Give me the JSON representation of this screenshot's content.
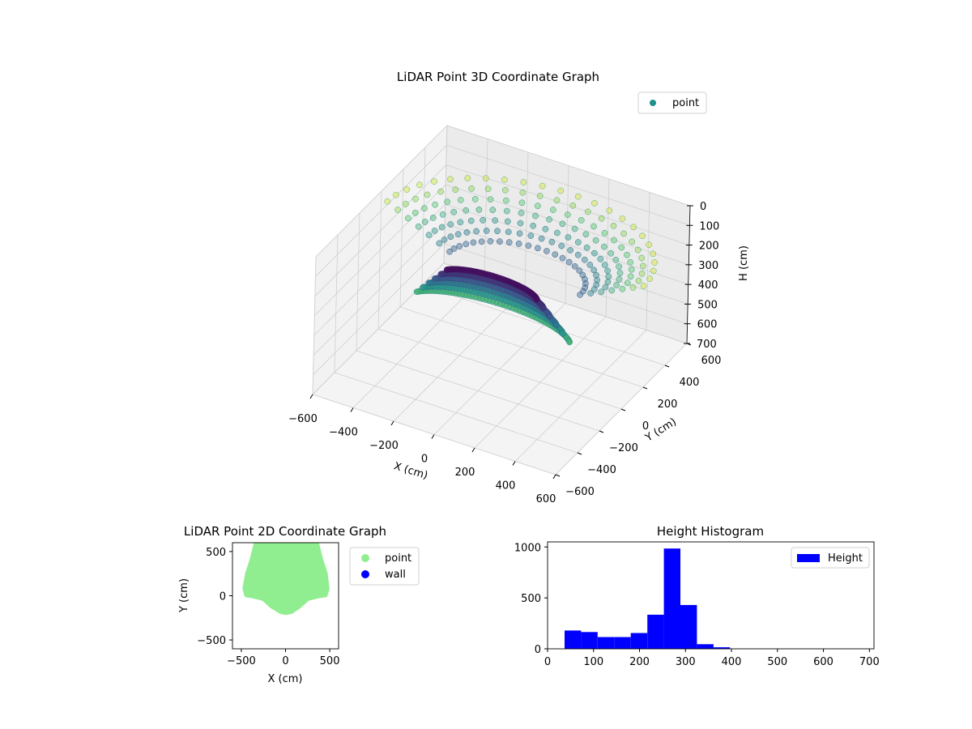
{
  "chart_data": [
    {
      "type": "scatter",
      "projection": "3d",
      "title": "LiDAR Point 3D Coordinate Graph",
      "xlabel": "X (cm)",
      "ylabel": "Y (cm)",
      "zlabel": "H (cm)",
      "xlim": [
        -600,
        600
      ],
      "ylim": [
        -600,
        600
      ],
      "zlim": [
        700,
        0
      ],
      "z_inverted": true,
      "xticks": [
        "−600",
        "−400",
        "−200",
        "0",
        "200",
        "400",
        "600"
      ],
      "yticks": [
        "−600",
        "−400",
        "−200",
        "0",
        "200",
        "400",
        "600"
      ],
      "zticks": [
        "0",
        "100",
        "200",
        "300",
        "400",
        "500",
        "600",
        "700"
      ],
      "colormap": "viridis",
      "grid": true,
      "legend": {
        "placement": "upper-right",
        "entries": [
          {
            "label": "point",
            "color": "#21918c"
          }
        ]
      },
      "surface": {
        "description": "bowl-shaped point cloud scanned radially, depth ranging roughly 150 to 420 cm",
        "x_range": [
          -600,
          600
        ],
        "y_range": [
          -400,
          600
        ],
        "h_range": [
          120,
          420
        ]
      }
    },
    {
      "type": "scatter",
      "title": "LiDAR Point 2D Coordinate Graph",
      "xlabel": "X (cm)",
      "ylabel": "Y (cm)",
      "xlim": [
        -600,
        600
      ],
      "ylim": [
        -600,
        600
      ],
      "xticks": [
        "−500",
        "0",
        "500"
      ],
      "yticks": [
        "−500",
        "0",
        "500"
      ],
      "legend": {
        "placement": "outside-upper-right",
        "entries": [
          {
            "label": "point",
            "color": "#90ee90"
          },
          {
            "label": "wall",
            "color": "#0000ff"
          }
        ]
      },
      "footprint": {
        "description": "filled point footprint",
        "outline_xy": [
          [
            -330,
            600
          ],
          [
            -380,
            400
          ],
          [
            -430,
            250
          ],
          [
            -460,
            80
          ],
          [
            -440,
            10
          ],
          [
            -380,
            0
          ],
          [
            -250,
            -30
          ],
          [
            -150,
            -120
          ],
          [
            -50,
            -180
          ],
          [
            0,
            -190
          ],
          [
            60,
            -180
          ],
          [
            150,
            -120
          ],
          [
            250,
            -30
          ],
          [
            380,
            0
          ],
          [
            450,
            10
          ],
          [
            470,
            80
          ],
          [
            450,
            250
          ],
          [
            400,
            400
          ],
          [
            350,
            600
          ]
        ]
      }
    },
    {
      "type": "bar",
      "subtype": "histogram",
      "title": "Height Histogram",
      "xlim": [
        0,
        710
      ],
      "ylim": [
        0,
        1050
      ],
      "xticks": [
        "0",
        "100",
        "200",
        "300",
        "400",
        "500",
        "600",
        "700"
      ],
      "yticks": [
        "0",
        "500",
        "1000"
      ],
      "color": "#0000ff",
      "legend": {
        "placement": "upper-right",
        "entries": [
          {
            "label": "Height",
            "color": "#0000ff"
          }
        ]
      },
      "bins": [
        {
          "x0": 37,
          "x1": 73,
          "value": 180
        },
        {
          "x0": 73,
          "x1": 109,
          "value": 165
        },
        {
          "x0": 109,
          "x1": 145,
          "value": 115
        },
        {
          "x0": 145,
          "x1": 181,
          "value": 115
        },
        {
          "x0": 181,
          "x1": 217,
          "value": 155
        },
        {
          "x0": 217,
          "x1": 253,
          "value": 335
        },
        {
          "x0": 253,
          "x1": 289,
          "value": 985
        },
        {
          "x0": 289,
          "x1": 325,
          "value": 430
        },
        {
          "x0": 325,
          "x1": 361,
          "value": 45
        },
        {
          "x0": 361,
          "x1": 397,
          "value": 15
        }
      ]
    }
  ]
}
